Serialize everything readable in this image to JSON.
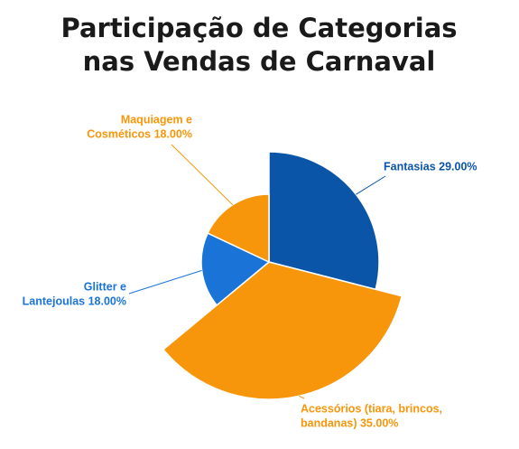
{
  "chart_data": {
    "type": "pie",
    "title_lines": [
      "Participação de Categorias",
      "nas Vendas de Carnaval"
    ],
    "slices": [
      {
        "label_lines": [
          "Fantasias 29.00%"
        ],
        "value": 29.0,
        "color": "#0a55a8"
      },
      {
        "label_lines": [
          "Acessórios (tiara, brincos,",
          "bandanas) 35.00%"
        ],
        "value": 35.0,
        "color": "#f7960a"
      },
      {
        "label_lines": [
          "Glitter e",
          "Lantejoulas 18.00%"
        ],
        "value": 18.0,
        "color": "#1a74d8"
      },
      {
        "label_lines": [
          "Maquiagem e",
          "Cosméticos 18.00%"
        ],
        "value": 18.0,
        "color": "#f7960a"
      }
    ],
    "legend": "none"
  }
}
